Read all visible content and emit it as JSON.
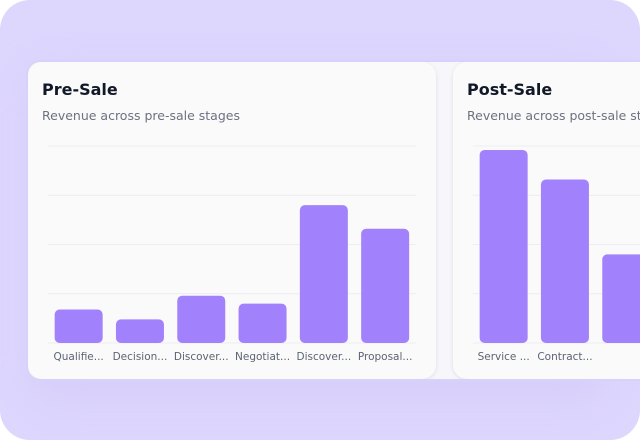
{
  "colors": {
    "bar": "#a282fc",
    "background": "#ddd6fd",
    "card": "#fafafa"
  },
  "cards": [
    {
      "title": "Pre-Sale",
      "subtitle": "Revenue across pre-sale stages"
    },
    {
      "title": "Post-Sale",
      "subtitle": "Revenue across post-sale stages"
    }
  ],
  "chart_data": [
    {
      "type": "bar",
      "categories": [
        "Qualifie...",
        "Decision...",
        "Discover...",
        "Negotiat...",
        "Discover...",
        "Proposal..."
      ],
      "values": [
        17,
        12,
        24,
        20,
        70,
        58
      ],
      "ylim": [
        0,
        100
      ],
      "grid": true
    },
    {
      "type": "bar",
      "categories": [
        "Service ...",
        "Contract...",
        ""
      ],
      "values": [
        98,
        83,
        45
      ],
      "ylim": [
        0,
        100
      ],
      "grid": true
    }
  ]
}
